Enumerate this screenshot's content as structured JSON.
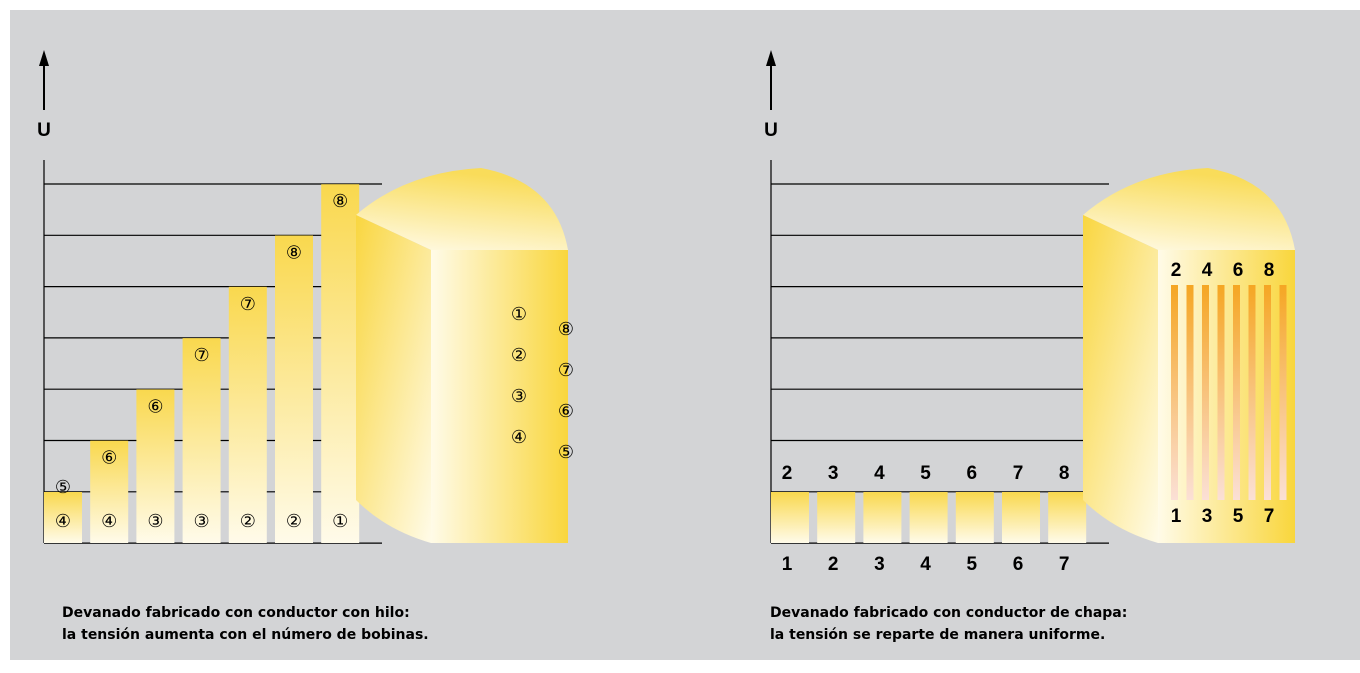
{
  "left": {
    "axis_label": "U",
    "bar_top_labels": [
      "⑤",
      "⑥",
      "⑥",
      "⑦",
      "⑦",
      "⑧",
      "⑧"
    ],
    "bar_bottom_labels": [
      "④",
      "④",
      "③",
      "③",
      "②",
      "②",
      "①"
    ],
    "coil_left_labels": [
      "①",
      "②",
      "③",
      "④"
    ],
    "coil_right_labels": [
      "⑧",
      "⑦",
      "⑥",
      "⑤"
    ],
    "caption": [
      "Devanado fabricado con conductor con hilo:",
      "la tensión aumenta con el número de bobinas."
    ]
  },
  "right": {
    "axis_label": "U",
    "bar_top_labels": [
      "2",
      "3",
      "4",
      "5",
      "6",
      "7",
      "8"
    ],
    "bar_bottom_labels": [
      "1",
      "2",
      "3",
      "4",
      "5",
      "6",
      "7"
    ],
    "coil_top_labels": [
      "2",
      "4",
      "6",
      "8"
    ],
    "coil_bottom_labels": [
      "1",
      "3",
      "5",
      "7"
    ],
    "caption": [
      "Devanado fabricado con conductor de chapa:",
      "la tensión se reparte de manera uniforme."
    ]
  }
}
